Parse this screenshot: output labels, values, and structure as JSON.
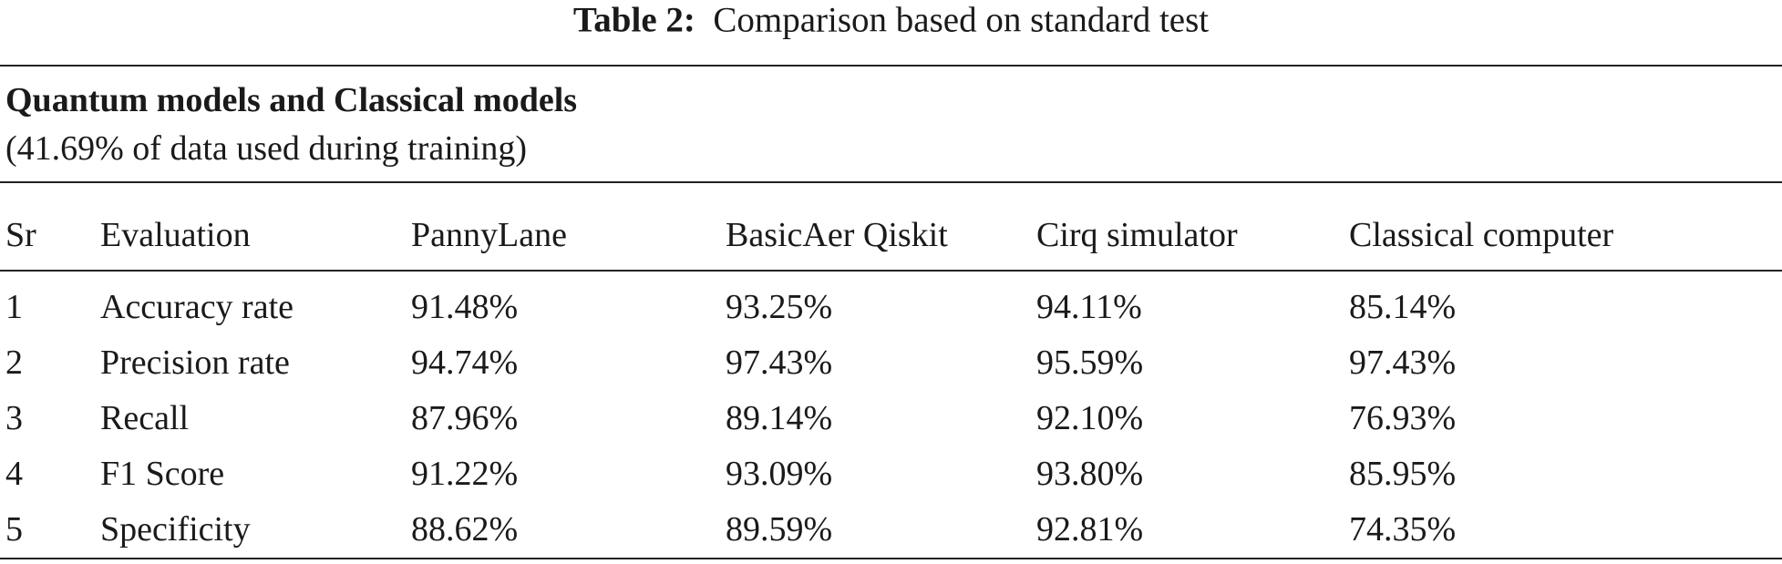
{
  "caption": {
    "label": "Table 2:",
    "text": "Comparison based on standard test"
  },
  "section": {
    "title": "Quantum models and Classical models",
    "subtitle": "(41.69% of data used during training)"
  },
  "table": {
    "columns": [
      "Sr",
      "Evaluation",
      "PannyLane",
      "BasicAer Qiskit",
      "Cirq simulator",
      "Classical computer"
    ],
    "rows": [
      [
        "1",
        "Accuracy rate",
        "91.48%",
        "93.25%",
        "94.11%",
        "85.14%"
      ],
      [
        "2",
        "Precision rate",
        "94.74%",
        "97.43%",
        "95.59%",
        "97.43%"
      ],
      [
        "3",
        "Recall",
        "87.96%",
        "89.14%",
        "92.10%",
        "76.93%"
      ],
      [
        "4",
        "F1 Score",
        "91.22%",
        "93.09%",
        "93.80%",
        "85.95%"
      ],
      [
        "5",
        "Specificity",
        "88.62%",
        "89.59%",
        "92.81%",
        "74.35%"
      ]
    ]
  }
}
